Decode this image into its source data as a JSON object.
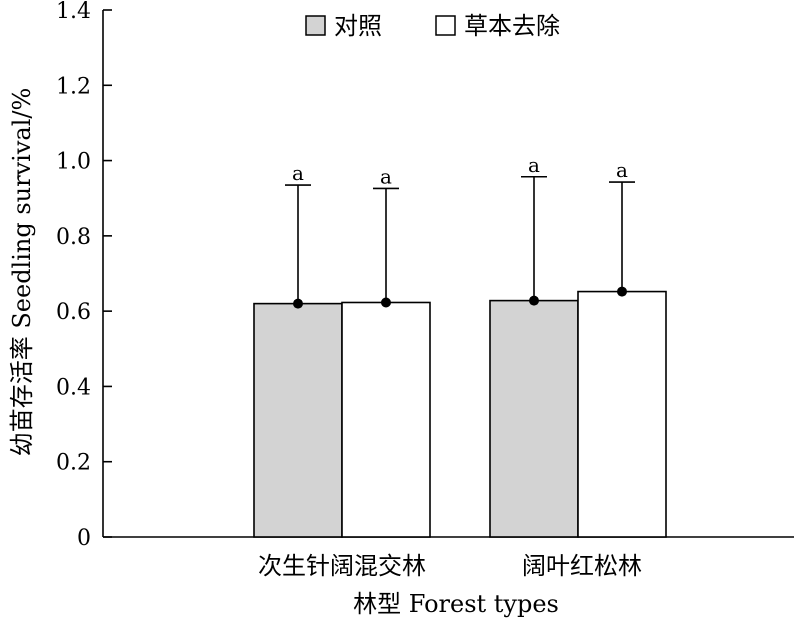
{
  "chart_data": {
    "type": "bar",
    "categories": [
      "次生针阔混交林",
      "阔叶红松林"
    ],
    "series": [
      {
        "name": "对照",
        "values": [
          0.62,
          0.628
        ],
        "error_upper": [
          0.935,
          0.957
        ],
        "significance": [
          "a",
          "a"
        ],
        "color": "#d3d3d3"
      },
      {
        "name": "草本去除",
        "values": [
          0.623,
          0.652
        ],
        "error_upper": [
          0.926,
          0.943
        ],
        "significance": [
          "a",
          "a"
        ],
        "color": "#ffffff"
      }
    ],
    "xlabel": "林型 Forest types",
    "ylabel": "幼苗存活率 Seedling survival/%",
    "ylim": [
      0,
      1.4
    ],
    "yticks": [
      "0",
      "0.2",
      "0.4",
      "0.6",
      "0.8",
      "1.0",
      "1.2",
      "1.4"
    ],
    "legend_position": "top-center",
    "grid": false,
    "axis_color": "#000000"
  }
}
